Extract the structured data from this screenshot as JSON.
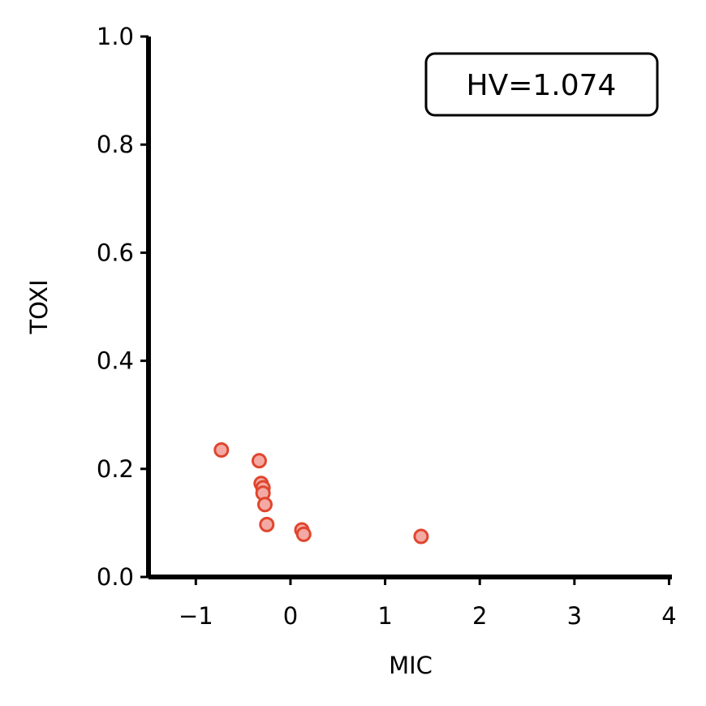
{
  "chart_data": {
    "type": "scatter",
    "title": "",
    "xlabel": "MIC",
    "ylabel": "TOXI",
    "xlim": [
      -1.5,
      4.03
    ],
    "ylim": [
      0.0,
      1.0
    ],
    "xticks": [
      -1,
      0,
      1,
      2,
      3,
      4
    ],
    "xtick_labels": [
      "−1",
      "0",
      "1",
      "2",
      "3",
      "4"
    ],
    "yticks": [
      0.0,
      0.2,
      0.4,
      0.6,
      0.8,
      1.0
    ],
    "ytick_labels": [
      "0.0",
      "0.2",
      "0.4",
      "0.6",
      "0.8",
      "1.0"
    ],
    "grid": false,
    "annotation": {
      "text": "HV=1.074",
      "placement": "top-right"
    },
    "colors": {
      "marker_fill": "#f4aaa4",
      "marker_edge": "#e0462e",
      "axis": "#000000"
    },
    "series": [
      {
        "x": [
          -0.73,
          -0.33,
          -0.31,
          -0.29,
          -0.29,
          -0.27,
          -0.25,
          0.12,
          0.14,
          1.38
        ],
        "y": [
          0.235,
          0.215,
          0.173,
          0.165,
          0.155,
          0.134,
          0.097,
          0.087,
          0.079,
          0.075
        ]
      }
    ]
  }
}
